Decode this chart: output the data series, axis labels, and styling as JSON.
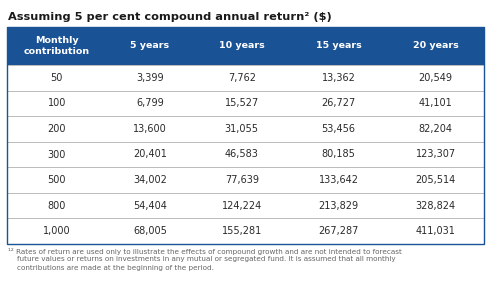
{
  "title_display": "Assuming 5 per cent compound annual return² ($)",
  "col_headers": [
    "Monthly\ncontribution",
    "5 years",
    "10 years",
    "15 years",
    "20 years"
  ],
  "rows": [
    [
      "50",
      "3,399",
      "7,762",
      "13,362",
      "20,549"
    ],
    [
      "100",
      "6,799",
      "15,527",
      "26,727",
      "41,101"
    ],
    [
      "200",
      "13,600",
      "31,055",
      "53,456",
      "82,204"
    ],
    [
      "300",
      "20,401",
      "46,583",
      "80,185",
      "123,307"
    ],
    [
      "500",
      "34,002",
      "77,639",
      "133,642",
      "205,514"
    ],
    [
      "800",
      "54,404",
      "124,224",
      "213,829",
      "328,824"
    ],
    [
      "1,000",
      "68,005",
      "155,281",
      "267,287",
      "411,031"
    ]
  ],
  "header_bg": "#1a5296",
  "header_text": "#ffffff",
  "divider_color": "#b0b0b0",
  "body_text_color": "#2a2a2a",
  "title_color": "#1a1a1a",
  "footnote_line1": "¹² Rates of return are used only to illustrate the effects of compound growth and are not intended to forecast",
  "footnote_line2": "    future values or returns on investments in any mutual or segregated fund. It is assumed that all monthly",
  "footnote_line3": "    contributions are made at the beginning of the period.",
  "bg_color": "#ffffff",
  "table_border_color": "#1a5296"
}
